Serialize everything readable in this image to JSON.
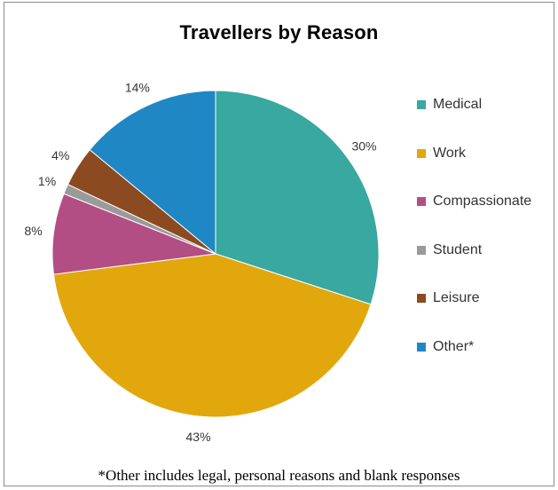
{
  "chart_data": {
    "type": "pie",
    "title": "Travellers by Reason",
    "start_angle_deg": 90,
    "direction": "clockwise",
    "legend_position": "right",
    "slices": [
      {
        "name": "Medical",
        "value": 30,
        "label": "30%",
        "color": "#38a8a0"
      },
      {
        "name": "Work",
        "value": 43,
        "label": "43%",
        "color": "#e2a70c"
      },
      {
        "name": "Compassionate",
        "value": 8,
        "label": "8%",
        "color": "#b34e85"
      },
      {
        "name": "Student",
        "value": 1,
        "label": "1%",
        "color": "#9a9a9a"
      },
      {
        "name": "Leisure",
        "value": 4,
        "label": "4%",
        "color": "#8b4a1f"
      },
      {
        "name": "Other*",
        "value": 14,
        "label": "14%",
        "color": "#1f87c4"
      }
    ]
  },
  "footnote": "*Other includes legal, personal reasons and blank responses"
}
